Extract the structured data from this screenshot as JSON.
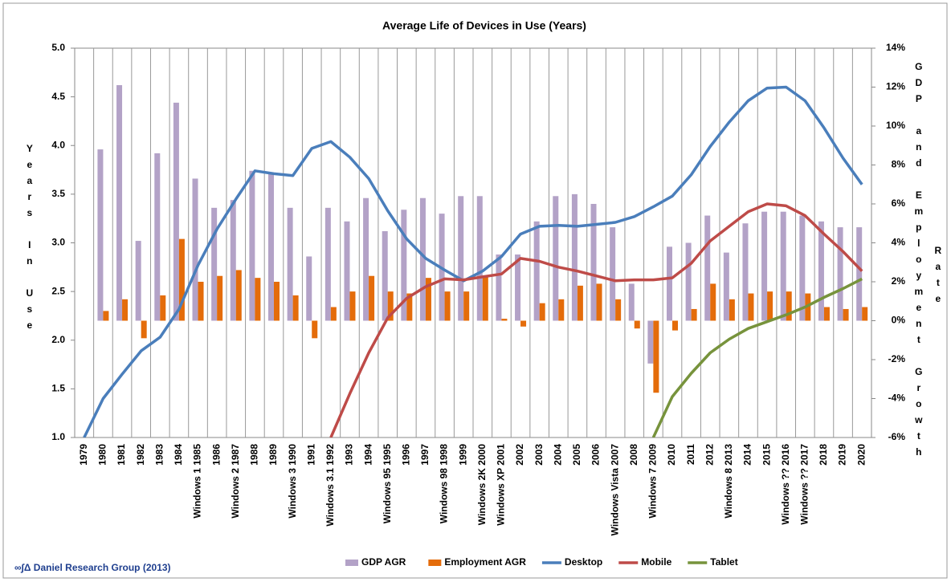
{
  "chart_data": {
    "type": "bar-line",
    "title": "Average Life of Devices in Use (Years)",
    "y_label": "Years In Use",
    "y2_label_lines": [
      "GDP and Employment Growth",
      "Rate"
    ],
    "source": "∞∫Δ Daniel Research Group (2013)",
    "categories": [
      "1979",
      "1980",
      "1981",
      "1982",
      "1983",
      "1984",
      "Windows 1 1985",
      "1986",
      "Windows 2 1987",
      "1988",
      "1989",
      "Windows 3 1990",
      "1991",
      "Windows 3.1 1992",
      "1993",
      "1994",
      "Windows 95 1995",
      "1996",
      "1997",
      "Windows 98 1998",
      "1999",
      "Windows 2K 2000",
      "Windows XP 2001",
      "2002",
      "2003",
      "2004",
      "2005",
      "2006",
      "Windows Vista 2007",
      "2008",
      "Windows 7 2009",
      "2010",
      "2011",
      "2012",
      "Windows 8 2013",
      "2014",
      "2015",
      "Windows ?? 2016",
      "Windows ?? 2017",
      "2018",
      "2019",
      "2020"
    ],
    "ylim": [
      1,
      5
    ],
    "yticks": [
      {
        "value": 1,
        "label": "1.0"
      },
      1.5,
      {
        "value": 2,
        "label": "2.0"
      },
      2.5,
      {
        "value": 3,
        "label": "3.0"
      },
      3.5,
      {
        "value": 4,
        "label": "4.0"
      },
      4.5,
      {
        "value": 5,
        "label": "5.0"
      }
    ],
    "y2lim": [
      -6,
      14
    ],
    "y2ticks": [
      {
        "value": -6,
        "label": "-6%"
      },
      {
        "value": -4,
        "label": "-4%"
      },
      {
        "value": -2,
        "label": "-2%"
      },
      {
        "value": 0,
        "label": "0%"
      },
      {
        "value": 2,
        "label": "2%"
      },
      {
        "value": 4,
        "label": "4%"
      },
      {
        "value": 6,
        "label": "6%"
      },
      {
        "value": 8,
        "label": "8%"
      },
      {
        "value": 10,
        "label": "10%"
      },
      {
        "value": 12,
        "label": "12%"
      },
      {
        "value": 14,
        "label": "14%"
      }
    ],
    "series": [
      {
        "name": "GDP AGR",
        "type": "bar",
        "axis": "y2",
        "color": "#b3a2c7",
        "values": [
          null,
          8.8,
          12.1,
          4.1,
          8.6,
          11.2,
          7.3,
          5.8,
          6.2,
          7.7,
          7.6,
          5.8,
          3.3,
          5.8,
          5.1,
          6.3,
          4.6,
          5.7,
          6.3,
          5.5,
          6.4,
          6.4,
          3.4,
          3.4,
          5.1,
          6.4,
          6.5,
          6.0,
          4.8,
          1.9,
          -2.2,
          3.8,
          4.0,
          5.4,
          3.5,
          5.0,
          5.6,
          5.6,
          5.4,
          5.1,
          4.8,
          4.8
        ]
      },
      {
        "name": "Employment AGR",
        "type": "bar",
        "axis": "y2",
        "color": "#e46c0a",
        "values": [
          null,
          0.5,
          1.1,
          -0.9,
          1.3,
          4.2,
          2.0,
          2.3,
          2.6,
          2.2,
          2.0,
          1.3,
          -0.9,
          0.7,
          1.5,
          2.3,
          1.5,
          1.4,
          2.2,
          1.5,
          1.5,
          2.3,
          0.1,
          -0.3,
          0.9,
          1.1,
          1.8,
          1.9,
          1.1,
          -0.4,
          -3.7,
          -0.5,
          0.6,
          1.9,
          1.1,
          1.4,
          1.5,
          1.5,
          1.4,
          0.7,
          0.6,
          0.7
        ]
      },
      {
        "name": "Desktop",
        "type": "line",
        "color": "#4a7ebb",
        "values": [
          1.0,
          1.4,
          1.65,
          1.89,
          2.03,
          2.32,
          2.77,
          3.14,
          3.45,
          3.74,
          3.71,
          3.69,
          3.97,
          4.04,
          3.88,
          3.66,
          3.33,
          3.04,
          2.84,
          2.72,
          2.61,
          2.71,
          2.86,
          3.09,
          3.17,
          3.18,
          3.17,
          3.19,
          3.21,
          3.27,
          3.37,
          3.48,
          3.7,
          3.99,
          4.24,
          4.46,
          4.59,
          4.6,
          4.46,
          4.18,
          3.87,
          3.6
        ]
      },
      {
        "name": "Mobile",
        "type": "line",
        "color": "#be4b48",
        "values": [
          null,
          null,
          null,
          null,
          null,
          null,
          null,
          null,
          null,
          null,
          null,
          null,
          null,
          1.0,
          1.45,
          1.87,
          2.23,
          2.43,
          2.55,
          2.63,
          2.62,
          2.65,
          2.68,
          2.84,
          2.81,
          2.75,
          2.71,
          2.66,
          2.61,
          2.62,
          2.62,
          2.64,
          2.79,
          3.02,
          3.17,
          3.32,
          3.4,
          3.38,
          3.28,
          3.09,
          2.91,
          2.71
        ]
      },
      {
        "name": "Tablet",
        "type": "line",
        "color": "#77933c",
        "values": [
          null,
          null,
          null,
          null,
          null,
          null,
          null,
          null,
          null,
          null,
          null,
          null,
          null,
          null,
          null,
          null,
          null,
          null,
          null,
          null,
          null,
          null,
          null,
          null,
          null,
          null,
          null,
          null,
          null,
          null,
          1.0,
          1.42,
          1.66,
          1.87,
          2.01,
          2.12,
          2.19,
          2.26,
          2.34,
          2.44,
          2.53,
          2.63
        ]
      }
    ]
  }
}
